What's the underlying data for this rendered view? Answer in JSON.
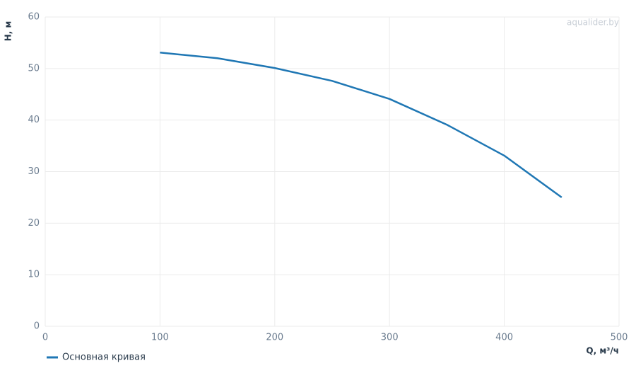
{
  "chart_data": {
    "type": "line",
    "x_label": "Q, м³/ч",
    "y_label": "H, м",
    "watermark": "aqualider.by",
    "x": [
      100,
      150,
      200,
      250,
      300,
      350,
      400,
      450
    ],
    "series": [
      {
        "name": "Основная кривая",
        "color": "#1f77b4",
        "values": [
          53.1,
          52.0,
          50.1,
          47.6,
          44.1,
          39.1,
          33.1,
          25.0
        ]
      }
    ],
    "xlim": [
      0,
      500
    ],
    "xticks": [
      0,
      100,
      200,
      300,
      400,
      500
    ],
    "ylim": [
      0,
      60
    ],
    "yticks": [
      0,
      10,
      20,
      30,
      40,
      50,
      60
    ],
    "grid": true,
    "legend": "bottom-left"
  }
}
